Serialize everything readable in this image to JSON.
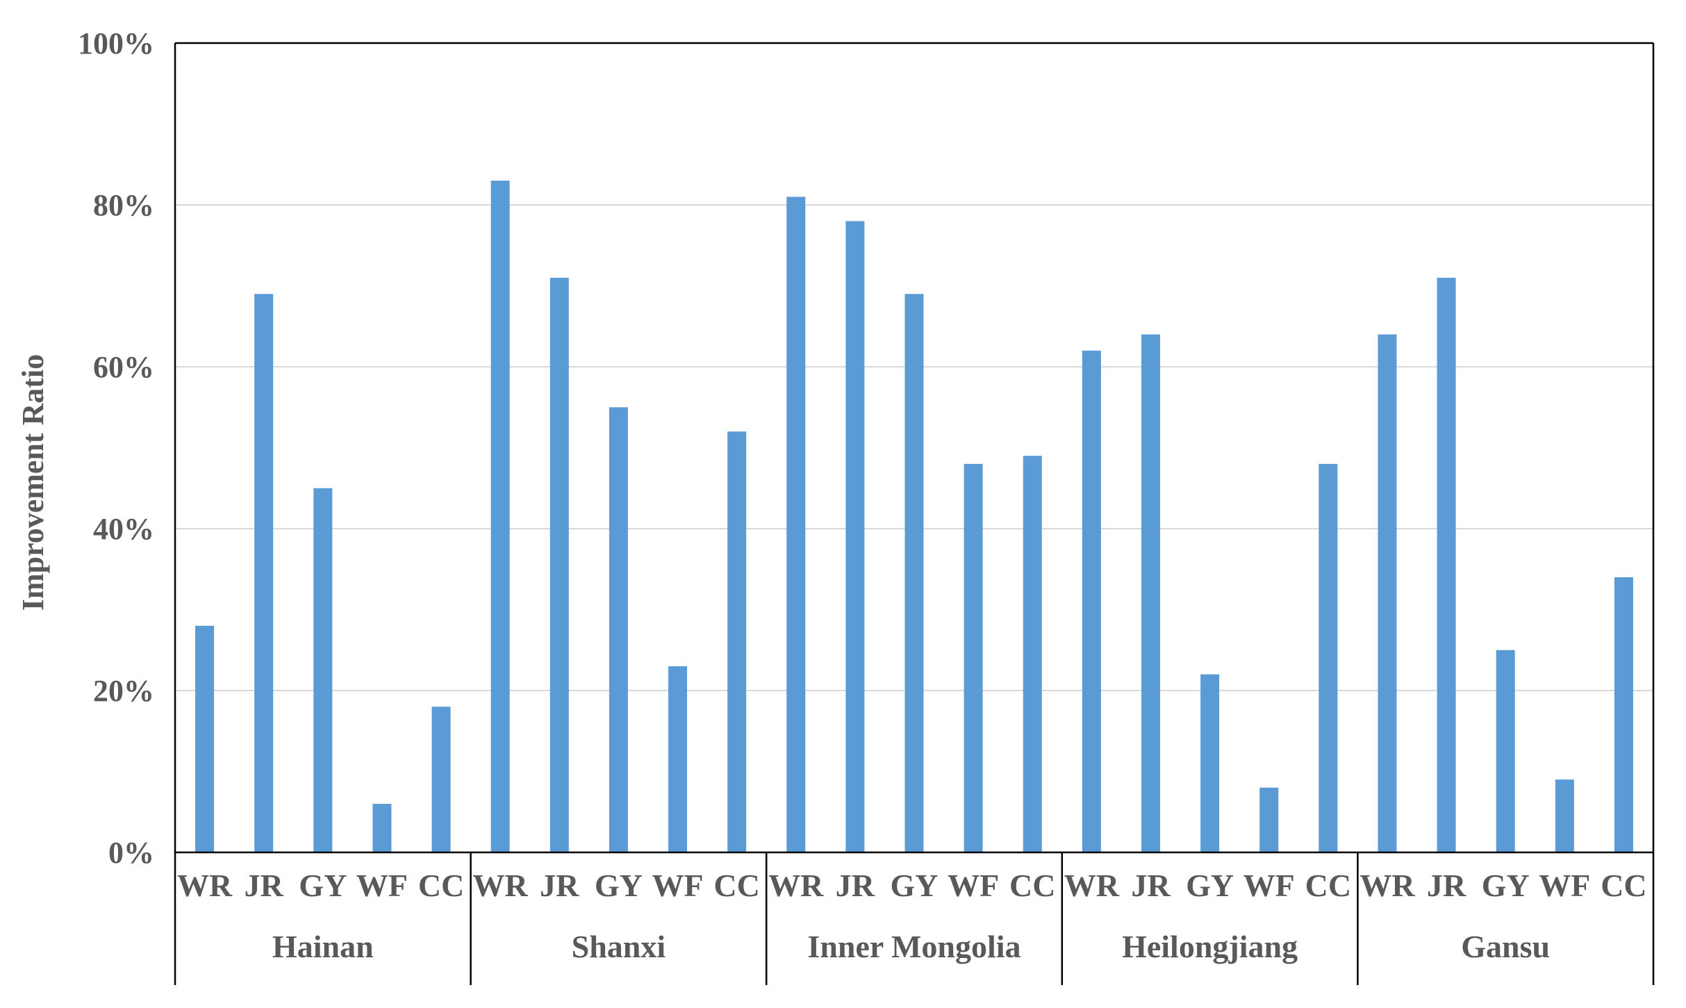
{
  "chart_data": {
    "type": "bar",
    "ylabel": "Improvement Ratio",
    "xlabel": "",
    "ylim": [
      0,
      1
    ],
    "yticks": [
      "0%",
      "20%",
      "40%",
      "60%",
      "80%",
      "100%"
    ],
    "grid": true,
    "legend": "none",
    "bar_color": "#5B9BD5",
    "groups": [
      {
        "name": "Hainan",
        "categories": [
          "WR",
          "JR",
          "GY",
          "WF",
          "CC"
        ],
        "values": [
          0.28,
          0.69,
          0.45,
          0.06,
          0.18
        ]
      },
      {
        "name": "Shanxi",
        "categories": [
          "WR",
          "JR",
          "GY",
          "WF",
          "CC"
        ],
        "values": [
          0.83,
          0.71,
          0.55,
          0.23,
          0.52
        ]
      },
      {
        "name": "Inner Mongolia",
        "categories": [
          "WR",
          "JR",
          "GY",
          "WF",
          "CC"
        ],
        "values": [
          0.81,
          0.78,
          0.69,
          0.48,
          0.49
        ]
      },
      {
        "name": "Heilongjiang",
        "categories": [
          "WR",
          "JR",
          "GY",
          "WF",
          "CC"
        ],
        "values": [
          0.62,
          0.64,
          0.22,
          0.08,
          0.48
        ]
      },
      {
        "name": "Gansu",
        "categories": [
          "WR",
          "JR",
          "GY",
          "WF",
          "CC"
        ],
        "values": [
          0.64,
          0.71,
          0.25,
          0.09,
          0.34
        ]
      }
    ]
  }
}
